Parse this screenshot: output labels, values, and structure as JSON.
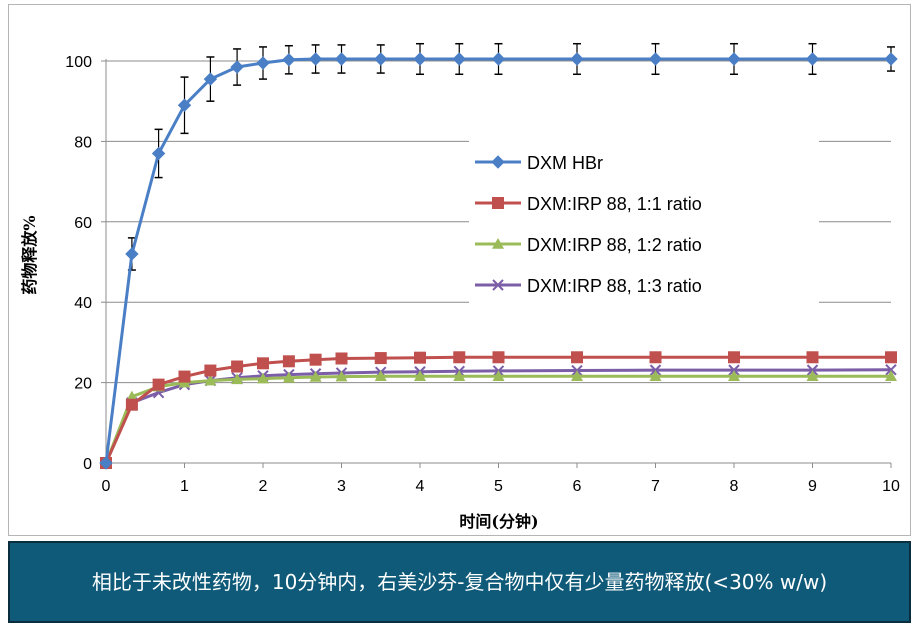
{
  "chart_data": {
    "type": "line",
    "title": "",
    "xlabel": "时间(分钟)",
    "ylabel": "药物释放%",
    "xlim": [
      0,
      10
    ],
    "ylim": [
      0,
      105
    ],
    "x_ticks": [
      0,
      1,
      2,
      3,
      4,
      5,
      6,
      7,
      8,
      9,
      10
    ],
    "y_ticks": [
      0,
      20,
      40,
      60,
      80,
      100
    ],
    "grid": "horizontal",
    "legend_position": "right-center",
    "series": [
      {
        "name": "DXM HBr",
        "color": "#4a7fc6",
        "marker": "diamond",
        "x": [
          0,
          0.33,
          0.67,
          1,
          1.33,
          1.67,
          2,
          2.33,
          2.67,
          3,
          3.5,
          4,
          4.5,
          5,
          6,
          7,
          8,
          9,
          10
        ],
        "y": [
          0,
          52,
          77,
          89,
          95.5,
          98.5,
          99.5,
          100.3,
          100.5,
          100.5,
          100.5,
          100.5,
          100.5,
          100.5,
          100.5,
          100.5,
          100.5,
          100.5,
          100.5
        ],
        "error": [
          0,
          4,
          6,
          7,
          5.5,
          4.5,
          4,
          3.5,
          3.5,
          3.5,
          3.5,
          3.8,
          3.8,
          3.8,
          3.8,
          3.8,
          3.8,
          3.8,
          3
        ]
      },
      {
        "name": "DXM:IRP 88, 1:1 ratio",
        "color": "#c0504d",
        "marker": "square",
        "x": [
          0,
          0.33,
          0.67,
          1,
          1.33,
          1.67,
          2,
          2.33,
          2.67,
          3,
          3.5,
          4,
          4.5,
          5,
          6,
          7,
          8,
          9,
          10
        ],
        "y": [
          0,
          14.5,
          19.5,
          21.5,
          23,
          24,
          24.8,
          25.3,
          25.7,
          26,
          26.1,
          26.2,
          26.3,
          26.3,
          26.3,
          26.3,
          26.3,
          26.3,
          26.3
        ]
      },
      {
        "name": "DXM:IRP 88, 1:2 ratio",
        "color": "#9bbb59",
        "marker": "triangle",
        "x": [
          0,
          0.33,
          0.67,
          1,
          1.33,
          1.67,
          2,
          2.33,
          2.67,
          3,
          3.5,
          4,
          4.5,
          5,
          6,
          7,
          8,
          9,
          10
        ],
        "y": [
          0,
          16.5,
          19,
          20,
          20.5,
          20.8,
          21,
          21.2,
          21.4,
          21.5,
          21.6,
          21.6,
          21.6,
          21.6,
          21.6,
          21.6,
          21.6,
          21.6,
          21.6
        ]
      },
      {
        "name": "DXM:IRP 88, 1:3 ratio",
        "color": "#7b5ea7",
        "marker": "x",
        "x": [
          0,
          0.33,
          0.67,
          1,
          1.33,
          1.67,
          2,
          2.33,
          2.67,
          3,
          3.5,
          4,
          4.5,
          5,
          6,
          7,
          8,
          9,
          10
        ],
        "y": [
          0,
          15,
          17.5,
          19.5,
          20.5,
          21.2,
          21.7,
          22,
          22.2,
          22.4,
          22.6,
          22.7,
          22.8,
          22.9,
          23,
          23.1,
          23.1,
          23.1,
          23.2
        ]
      }
    ]
  },
  "caption": {
    "text": "相比于未改性药物，10分钟内，右美沙芬-复合物中仅有少量药物释放(<30% w/w)"
  }
}
